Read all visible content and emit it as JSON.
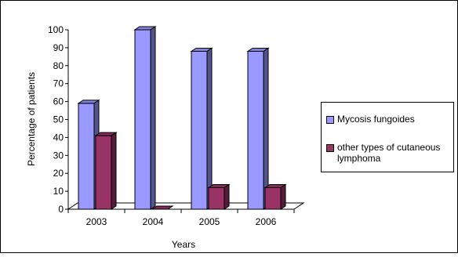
{
  "chart_data": {
    "type": "bar",
    "categories": [
      "2003",
      "2004",
      "2005",
      "2006"
    ],
    "series": [
      {
        "name": "Mycosis fungoides",
        "values": [
          59,
          100,
          88,
          88
        ],
        "color": "#9999ff"
      },
      {
        "name": "other types of cutaneous lymphoma",
        "values": [
          41,
          0,
          12,
          12
        ],
        "color": "#993366"
      }
    ],
    "xlabel": "Years",
    "ylabel": "Percentage of patients",
    "ylim": [
      0,
      100
    ],
    "yticks": [
      "0",
      "10",
      "20",
      "30",
      "40",
      "50",
      "60",
      "70",
      "80",
      "90",
      "100"
    ],
    "three_d": true,
    "grid": false,
    "legend_position": "right"
  }
}
